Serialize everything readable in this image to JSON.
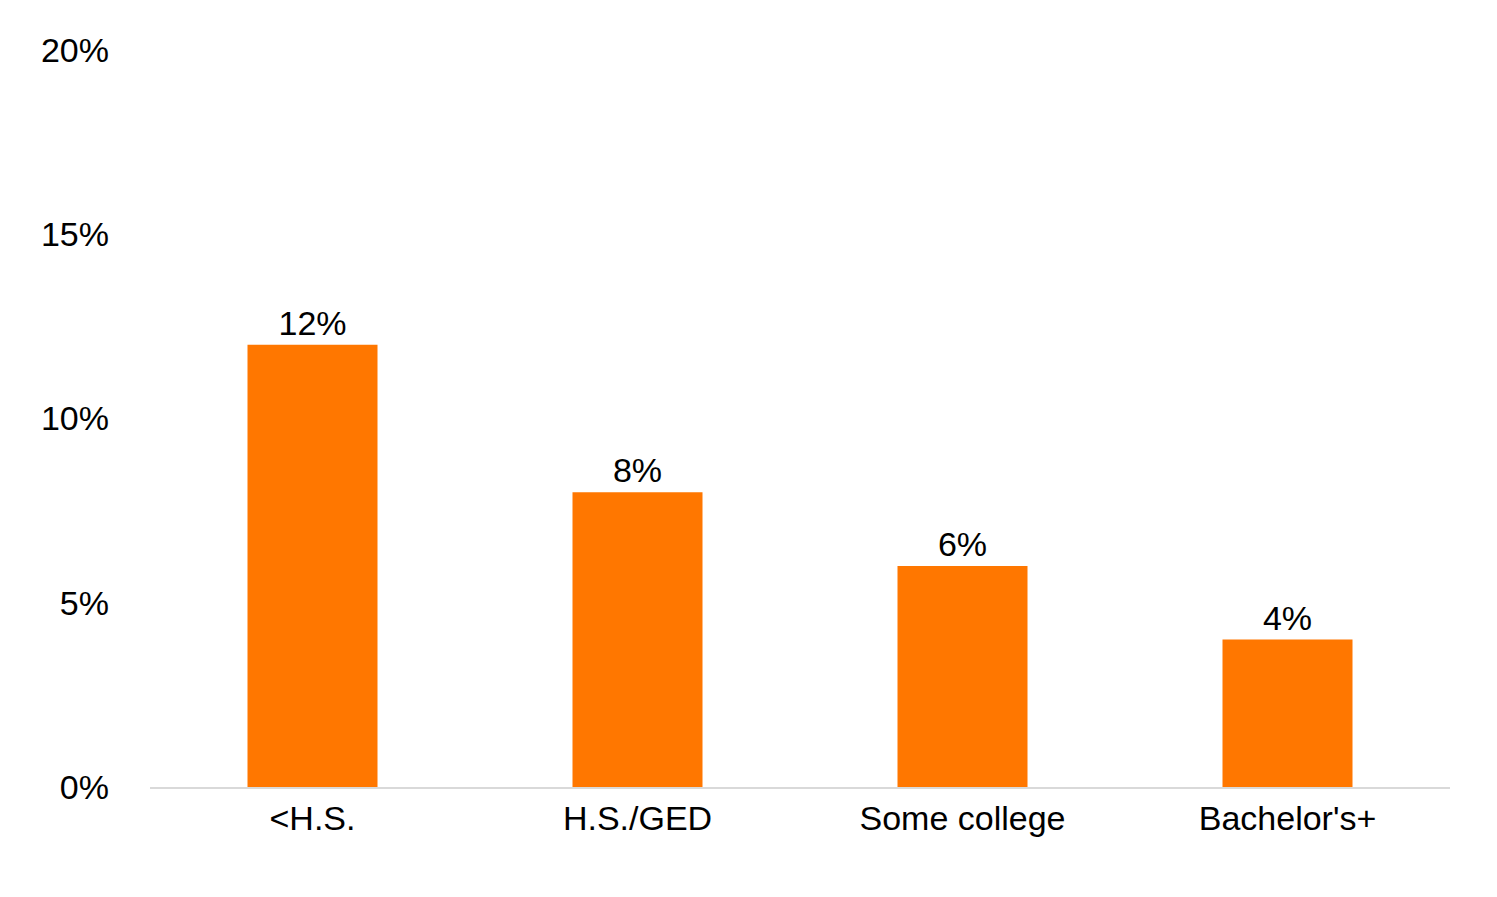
{
  "chart_data": {
    "type": "bar",
    "categories": [
      "<H.S.",
      "H.S./GED",
      "Some college",
      "Bachelor's+"
    ],
    "values": [
      12,
      8,
      6,
      4
    ],
    "value_labels": [
      "12%",
      "8%",
      "6%",
      "4%"
    ],
    "color": "#ff7700",
    "ylim": [
      0,
      20
    ],
    "yticks": [
      {
        "value": 0,
        "label": "0%"
      },
      {
        "value": 5,
        "label": "5%"
      },
      {
        "value": 10,
        "label": "10%"
      },
      {
        "value": 15,
        "label": "15%"
      },
      {
        "value": 20,
        "label": "20%"
      }
    ],
    "grid": false,
    "data_labels": true
  }
}
